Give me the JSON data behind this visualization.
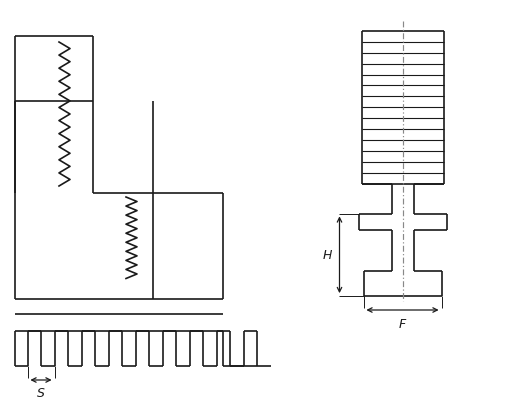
{
  "bg_color": "#ffffff",
  "line_color": "#1a1a1a",
  "line_width": 1.2,
  "fig_width": 5.13,
  "fig_height": 4.02,
  "dpi": 100,
  "label_S": "S",
  "label_H": "H",
  "label_F": "F"
}
